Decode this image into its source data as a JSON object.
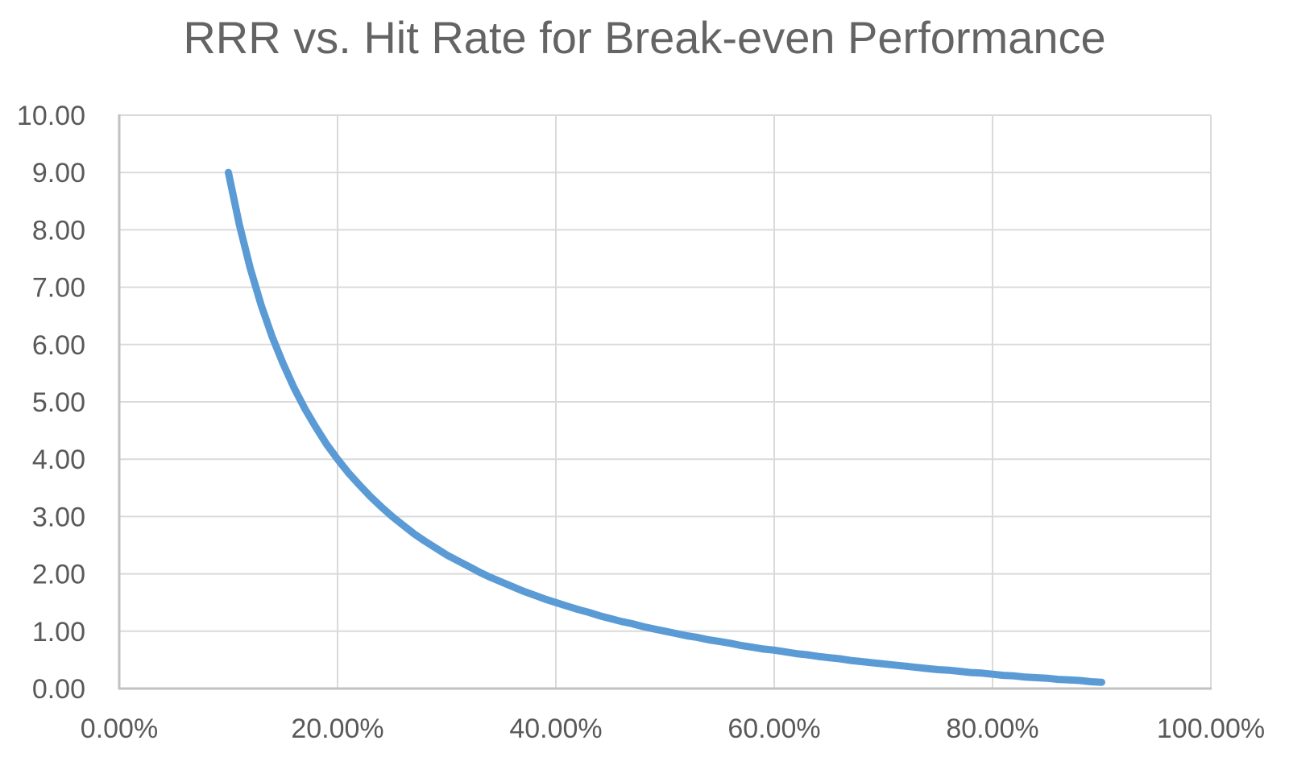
{
  "chart_data": {
    "type": "line",
    "title": "RRR vs. Hit Rate for Break-even Performance",
    "xlabel": "",
    "ylabel": "",
    "xlim": [
      0,
      100
    ],
    "ylim": [
      0,
      10
    ],
    "grid": true,
    "legend_position": "none",
    "x_tick_values": [
      0,
      20,
      40,
      60,
      80,
      100
    ],
    "x_tick_labels": [
      "0.00%",
      "20.00%",
      "40.00%",
      "60.00%",
      "80.00%",
      "100.00%"
    ],
    "y_tick_values": [
      0,
      1,
      2,
      3,
      4,
      5,
      6,
      7,
      8,
      9,
      10
    ],
    "y_tick_labels": [
      "0.00",
      "1.00",
      "2.00",
      "3.00",
      "4.00",
      "5.00",
      "6.00",
      "7.00",
      "8.00",
      "9.00",
      "10.00"
    ],
    "colors": {
      "line": "#5B9BD5",
      "gridline": "#DADADA",
      "axis": "#C2C2C2",
      "tick_label": "#595959",
      "title": "#646464"
    },
    "series": [
      {
        "color": "#5B9BD5",
        "points": [
          [
            10,
            9.0
          ],
          [
            11,
            8.09
          ],
          [
            12,
            7.33
          ],
          [
            13,
            6.69
          ],
          [
            14,
            6.14
          ],
          [
            15,
            5.67
          ],
          [
            16,
            5.25
          ],
          [
            17,
            4.88
          ],
          [
            18,
            4.56
          ],
          [
            19,
            4.26
          ],
          [
            20,
            4.0
          ],
          [
            21,
            3.76
          ],
          [
            22,
            3.55
          ],
          [
            23,
            3.35
          ],
          [
            24,
            3.17
          ],
          [
            25,
            3.0
          ],
          [
            26,
            2.85
          ],
          [
            27,
            2.7
          ],
          [
            28,
            2.57
          ],
          [
            29,
            2.45
          ],
          [
            30,
            2.33
          ],
          [
            31,
            2.23
          ],
          [
            32,
            2.13
          ],
          [
            33,
            2.03
          ],
          [
            34,
            1.94
          ],
          [
            35,
            1.86
          ],
          [
            36,
            1.78
          ],
          [
            37,
            1.7
          ],
          [
            38,
            1.63
          ],
          [
            39,
            1.56
          ],
          [
            40,
            1.5
          ],
          [
            41,
            1.44
          ],
          [
            42,
            1.38
          ],
          [
            43,
            1.33
          ],
          [
            44,
            1.27
          ],
          [
            45,
            1.22
          ],
          [
            46,
            1.17
          ],
          [
            47,
            1.13
          ],
          [
            48,
            1.08
          ],
          [
            49,
            1.04
          ],
          [
            50,
            1.0
          ],
          [
            51,
            0.96
          ],
          [
            52,
            0.92
          ],
          [
            53,
            0.89
          ],
          [
            54,
            0.85
          ],
          [
            55,
            0.82
          ],
          [
            56,
            0.79
          ],
          [
            57,
            0.75
          ],
          [
            58,
            0.72
          ],
          [
            59,
            0.69
          ],
          [
            60,
            0.67
          ],
          [
            61,
            0.64
          ],
          [
            62,
            0.61
          ],
          [
            63,
            0.59
          ],
          [
            64,
            0.56
          ],
          [
            65,
            0.54
          ],
          [
            66,
            0.52
          ],
          [
            67,
            0.49
          ],
          [
            68,
            0.47
          ],
          [
            69,
            0.45
          ],
          [
            70,
            0.43
          ],
          [
            71,
            0.41
          ],
          [
            72,
            0.39
          ],
          [
            73,
            0.37
          ],
          [
            74,
            0.35
          ],
          [
            75,
            0.33
          ],
          [
            76,
            0.32
          ],
          [
            77,
            0.3
          ],
          [
            78,
            0.28
          ],
          [
            79,
            0.27
          ],
          [
            80,
            0.25
          ],
          [
            81,
            0.23
          ],
          [
            82,
            0.22
          ],
          [
            83,
            0.2
          ],
          [
            84,
            0.19
          ],
          [
            85,
            0.18
          ],
          [
            86,
            0.16
          ],
          [
            87,
            0.15
          ],
          [
            88,
            0.14
          ],
          [
            89,
            0.12
          ],
          [
            90,
            0.11
          ]
        ]
      }
    ]
  }
}
